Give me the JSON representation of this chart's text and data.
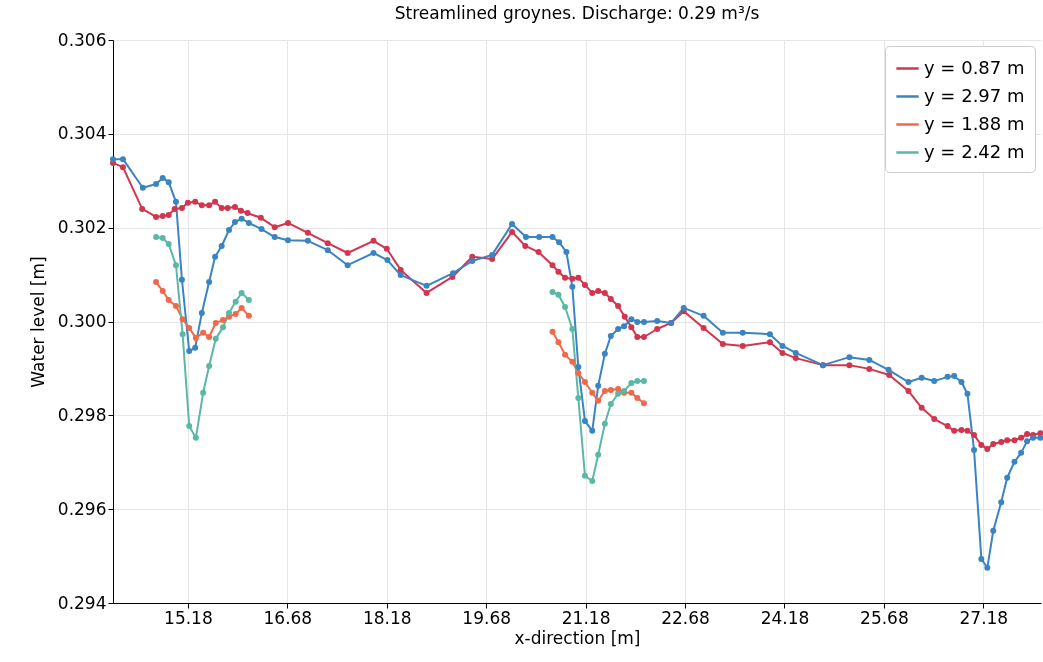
{
  "chart_data": {
    "type": "line",
    "title": "Streamlined groynes. Discharge: 0.29 m³/s",
    "xlabel": "x-direction [m]",
    "ylabel": "Water level [m]",
    "xlim": [
      14.05,
      28.05
    ],
    "xticks": [
      15.18,
      16.68,
      18.18,
      19.68,
      21.18,
      22.68,
      24.18,
      25.68,
      27.18
    ],
    "ylim": [
      0.294,
      0.306
    ],
    "yticks": [
      0.294,
      0.296,
      0.298,
      {
        "value": 0.3,
        "label": "0.300"
      },
      0.302,
      0.304,
      0.306
    ],
    "grid": true,
    "legend": "top right",
    "marker": "circle",
    "line_style": "solid",
    "series": [
      {
        "name": "y = 0.87 m",
        "color": "#d1364e",
        "x": [
          14.05,
          14.2,
          14.49,
          14.7,
          14.8,
          14.89,
          14.98,
          15.09,
          15.18,
          15.29,
          15.39,
          15.5,
          15.59,
          15.69,
          15.78,
          15.89,
          15.98,
          16.08,
          16.28,
          16.49,
          16.69,
          16.99,
          17.29,
          17.59,
          17.98,
          18.18,
          18.39,
          18.78,
          19.17,
          19.47,
          19.77,
          20.07,
          20.27,
          20.47,
          20.68,
          20.77,
          20.87,
          20.98,
          21.07,
          21.17,
          21.28,
          21.37,
          21.47,
          21.56,
          21.67,
          21.77,
          21.87,
          21.96,
          22.06,
          22.26,
          22.47,
          22.66,
          22.96,
          23.25,
          23.55,
          23.96,
          24.15,
          24.35,
          24.76,
          25.16,
          25.46,
          25.76,
          26.05,
          26.25,
          26.44,
          26.64,
          26.74,
          26.85,
          26.94,
          27.04,
          27.15,
          27.24,
          27.33,
          27.45,
          27.54,
          27.65,
          27.75,
          27.84,
          27.93,
          28.04
        ],
        "values": [
          0.30338,
          0.30329,
          0.3024,
          0.30223,
          0.30225,
          0.30227,
          0.3024,
          0.30242,
          0.30253,
          0.30255,
          0.30248,
          0.30248,
          0.30255,
          0.30242,
          0.30242,
          0.30244,
          0.30236,
          0.30231,
          0.30221,
          0.30201,
          0.3021,
          0.30189,
          0.30167,
          0.30146,
          0.30172,
          0.30155,
          0.3011,
          0.30061,
          0.30095,
          0.30138,
          0.30133,
          0.30191,
          0.30161,
          0.30148,
          0.3012,
          0.30106,
          0.30093,
          0.30091,
          0.30093,
          0.30078,
          0.30061,
          0.30065,
          0.30061,
          0.30048,
          0.30033,
          0.3001,
          0.29988,
          0.29967,
          0.29967,
          0.29984,
          0.29997,
          0.30022,
          0.29986,
          0.29952,
          0.29948,
          0.29956,
          0.29933,
          0.29922,
          0.29907,
          0.29907,
          0.29899,
          0.29886,
          0.29852,
          0.29816,
          0.29792,
          0.29777,
          0.29767,
          0.29769,
          0.29767,
          0.29758,
          0.29737,
          0.29728,
          0.29739,
          0.29743,
          0.29747,
          0.29747,
          0.29752,
          0.2976,
          0.29758,
          0.29762
        ]
      },
      {
        "name": "y = 2.97 m",
        "color": "#3a84c1",
        "x": [
          14.05,
          14.2,
          14.5,
          14.7,
          14.8,
          14.89,
          15.0,
          15.09,
          15.2,
          15.29,
          15.39,
          15.5,
          15.59,
          15.69,
          15.8,
          15.89,
          15.99,
          16.1,
          16.29,
          16.49,
          16.69,
          16.99,
          17.29,
          17.59,
          17.98,
          18.19,
          18.39,
          18.78,
          19.18,
          19.47,
          19.77,
          20.07,
          20.28,
          20.48,
          20.68,
          20.78,
          20.89,
          20.98,
          21.07,
          21.17,
          21.28,
          21.37,
          21.47,
          21.56,
          21.67,
          21.76,
          21.87,
          21.96,
          22.06,
          22.26,
          22.47,
          22.66,
          22.96,
          23.25,
          23.55,
          23.96,
          24.15,
          24.35,
          24.76,
          25.16,
          25.46,
          25.75,
          26.05,
          26.25,
          26.44,
          26.64,
          26.74,
          26.85,
          26.94,
          27.04,
          27.15,
          27.24,
          27.33,
          27.45,
          27.54,
          27.65,
          27.75,
          27.84,
          27.93,
          28.04
        ],
        "values": [
          0.30346,
          0.30346,
          0.30285,
          0.30293,
          0.30306,
          0.30297,
          0.30255,
          0.30089,
          0.29937,
          0.29944,
          0.30018,
          0.30084,
          0.30138,
          0.30161,
          0.30195,
          0.30212,
          0.30219,
          0.3021,
          0.30197,
          0.3018,
          0.30173,
          0.30172,
          0.30152,
          0.3012,
          0.30146,
          0.30131,
          0.30099,
          0.30076,
          0.30103,
          0.30129,
          0.30142,
          0.30208,
          0.3018,
          0.3018,
          0.3018,
          0.30169,
          0.30148,
          0.30074,
          0.29903,
          0.29788,
          0.29767,
          0.29863,
          0.29931,
          0.29969,
          0.29984,
          0.2999,
          0.30005,
          0.29999,
          0.29999,
          0.30001,
          0.29997,
          0.30029,
          0.30012,
          0.29976,
          0.29976,
          0.29973,
          0.29948,
          0.29933,
          0.29907,
          0.29924,
          0.29918,
          0.29897,
          0.29871,
          0.2988,
          0.29873,
          0.29882,
          0.29884,
          0.29871,
          0.29846,
          0.29726,
          0.29494,
          0.29475,
          0.29554,
          0.29615,
          0.29667,
          0.29701,
          0.2972,
          0.29745,
          0.29752,
          0.29752
        ]
      },
      {
        "name": "y = 1.88 m",
        "color": "#f0694a",
        "x": [
          14.7,
          14.8,
          14.89,
          15.0,
          15.1,
          15.2,
          15.3,
          15.41,
          15.5,
          15.6,
          15.71,
          15.8,
          15.9,
          15.99,
          16.1,
          null,
          20.68,
          20.77,
          20.87,
          20.98,
          21.07,
          21.17,
          21.28,
          21.37,
          21.47,
          21.56,
          21.67,
          21.76,
          21.87,
          21.96,
          22.06
        ],
        "values": [
          0.30084,
          0.30065,
          0.30046,
          0.30033,
          0.30005,
          0.29986,
          0.29965,
          0.29976,
          0.29967,
          0.29997,
          0.30003,
          0.3001,
          0.30016,
          0.30029,
          0.30012,
          null,
          0.29978,
          0.29956,
          0.29929,
          0.29914,
          0.2989,
          0.29871,
          0.29848,
          0.29831,
          0.29852,
          0.29854,
          0.29856,
          0.29848,
          0.29848,
          0.29837,
          0.29826
        ]
      },
      {
        "name": "y = 2.42 m",
        "color": "#5bb8a5",
        "x": [
          14.7,
          14.8,
          14.89,
          15.0,
          15.1,
          15.2,
          15.3,
          15.41,
          15.5,
          15.6,
          15.71,
          15.8,
          15.9,
          15.99,
          16.1,
          null,
          20.68,
          20.77,
          20.87,
          20.98,
          21.07,
          21.17,
          21.28,
          21.37,
          21.47,
          21.56,
          21.67,
          21.76,
          21.87,
          21.96,
          22.06
        ],
        "values": [
          0.3018,
          0.30178,
          0.30165,
          0.3012,
          0.29973,
          0.29777,
          0.29752,
          0.29848,
          0.29905,
          0.29963,
          0.29988,
          0.30018,
          0.30042,
          0.30061,
          0.30046,
          null,
          0.30063,
          0.30057,
          0.30031,
          0.29984,
          0.29837,
          0.29671,
          0.2966,
          0.29716,
          0.29782,
          0.29824,
          0.29846,
          0.29852,
          0.29869,
          0.29873,
          0.29873
        ]
      }
    ]
  }
}
